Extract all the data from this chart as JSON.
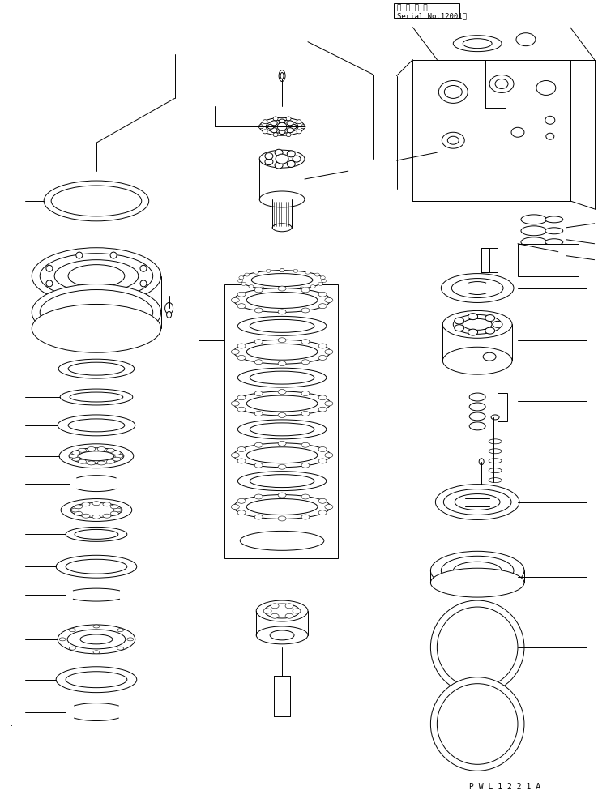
{
  "background_color": "#ffffff",
  "line_color": "#000000",
  "lw": 0.7,
  "fig_width": 7.38,
  "fig_height": 9.91,
  "dpi": 100,
  "text_serial": "適 用 号 機\nSerial No.12001～",
  "watermark": "P W L 1 2 2 1 A"
}
